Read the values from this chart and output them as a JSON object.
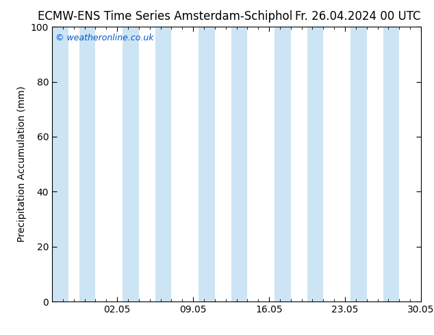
{
  "title_left": "ECMW-ENS Time Series Amsterdam-Schiphol",
  "title_right": "Fr. 26.04.2024 00 UTC",
  "ylabel": "Precipitation Accumulation (mm)",
  "ylim": [
    0,
    100
  ],
  "yticks": [
    0,
    20,
    40,
    60,
    80,
    100
  ],
  "xlim_start": 0,
  "xlim_end": 34,
  "xtick_labels": [
    "02.05",
    "09.05",
    "16.05",
    "23.05",
    "30.05"
  ],
  "xtick_positions": [
    6,
    13,
    20,
    27,
    34
  ],
  "band_color": "#cce4f4",
  "band_pairs": [
    [
      0.0,
      1.5
    ],
    [
      2.5,
      4.0
    ],
    [
      6.5,
      8.0
    ],
    [
      9.5,
      11.0
    ],
    [
      13.5,
      15.0
    ],
    [
      16.5,
      18.0
    ],
    [
      20.5,
      22.0
    ],
    [
      23.5,
      25.0
    ],
    [
      27.5,
      29.0
    ],
    [
      30.5,
      32.0
    ]
  ],
  "watermark": "© weatheronline.co.uk",
  "watermark_color": "#0055cc",
  "background_color": "#ffffff",
  "title_fontsize": 12,
  "axis_label_fontsize": 10,
  "tick_fontsize": 10
}
